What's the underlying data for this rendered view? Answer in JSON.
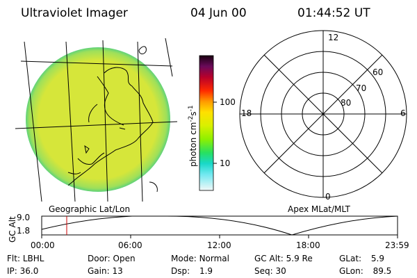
{
  "header": {
    "instrument": "Ultraviolet Imager",
    "date": "04 Jun 00",
    "time": "01:44:52 UT"
  },
  "colorbar": {
    "unit_label": "photon cm",
    "unit_exp1": "-2",
    "unit_mid": "s",
    "unit_exp2": "-1",
    "ticks": [
      "100",
      "10"
    ]
  },
  "polar_plot": {
    "mlt_labels": {
      "top": "12",
      "left": "18",
      "right": "6",
      "bottom": "0"
    },
    "lat_labels": [
      "60",
      "70",
      "80"
    ]
  },
  "panel_labels": {
    "left": "Geographic Lat/Lon",
    "right": "Apex MLat/MLT"
  },
  "altitude_plot": {
    "ylabel": "GC Alt",
    "y_ticks": [
      "9.0",
      "1.8"
    ],
    "x_ticks": [
      "00:00",
      "06:00",
      "12:00",
      "18:00",
      "23:59"
    ]
  },
  "status": {
    "filter": {
      "label": "Flt:",
      "value": "LBHL"
    },
    "ip": {
      "label": "IP:",
      "value": "36.0"
    },
    "door": {
      "label": "Door:",
      "value": "Open"
    },
    "gain": {
      "label": "Gain:",
      "value": "13"
    },
    "mode": {
      "label": "Mode:",
      "value": "Normal"
    },
    "dsp": {
      "label": "Dsp:",
      "value": "1.9"
    },
    "gc_alt": {
      "label": "GC Alt:",
      "value": "5.9 Re"
    },
    "seq": {
      "label": "Seq:",
      "value": "30"
    },
    "glat": {
      "label": "GLat:",
      "value": "5.9"
    },
    "glon": {
      "label": "GLon:",
      "value": "89.5"
    }
  },
  "colors": {
    "earth_disk": "#d6e63a",
    "earth_edge": "#5fd27a"
  }
}
